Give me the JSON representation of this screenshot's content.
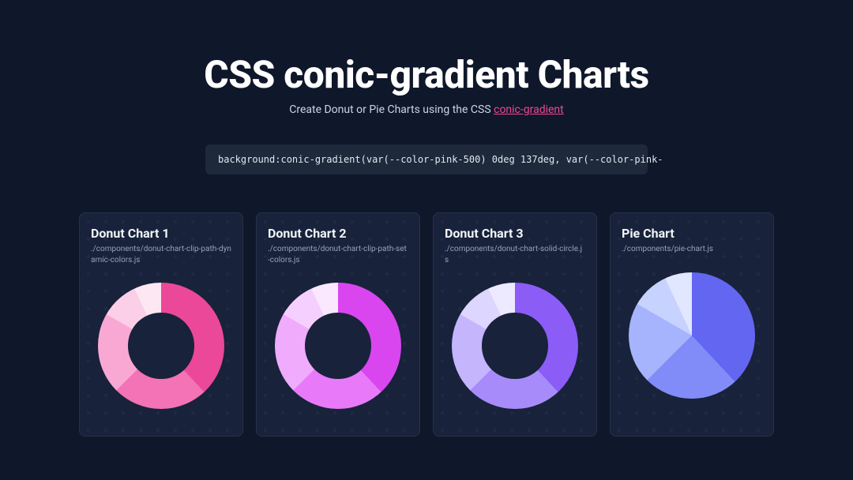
{
  "page": {
    "title": "CSS conic-gradient Charts",
    "subtitle_prefix": "Create Donut or Pie Charts using the CSS ",
    "subtitle_link": "conic-gradient",
    "code_snippet": "background:conic-gradient(var(--color-pink-500) 0deg 137deg, var(--color-pink-",
    "background_color": "#0f172a",
    "card_background": "#18223a",
    "code_background": "#1e293b",
    "title_color": "#ffffff",
    "subtitle_color": "#cbd5e1",
    "link_color": "#ec4899",
    "path_color": "#94a3b8",
    "title_fontsize": 48,
    "subtitle_fontsize": 14,
    "card_title_fontsize": 16,
    "card_path_fontsize": 10,
    "code_fontsize": 12,
    "chart_diameter": 160,
    "donut_hole_ratio": 0.52
  },
  "charts": [
    {
      "title": "Donut Chart 1",
      "path": "./components/donut-chart-clip-path-dynamic-colors.js",
      "type": "donut",
      "slices": [
        {
          "color": "#ec4899",
          "start_deg": 0,
          "end_deg": 137
        },
        {
          "color": "#f472b6",
          "start_deg": 137,
          "end_deg": 225
        },
        {
          "color": "#f9a8d4",
          "start_deg": 225,
          "end_deg": 300
        },
        {
          "color": "#fbcfe8",
          "start_deg": 300,
          "end_deg": 335
        },
        {
          "color": "#fce7f3",
          "start_deg": 335,
          "end_deg": 360
        }
      ]
    },
    {
      "title": "Donut Chart 2",
      "path": "./components/donut-chart-clip-path-set-colors.js",
      "type": "donut",
      "slices": [
        {
          "color": "#d946ef",
          "start_deg": 0,
          "end_deg": 137
        },
        {
          "color": "#e879f9",
          "start_deg": 137,
          "end_deg": 225
        },
        {
          "color": "#f0abfc",
          "start_deg": 225,
          "end_deg": 300
        },
        {
          "color": "#f5d0fe",
          "start_deg": 300,
          "end_deg": 335
        },
        {
          "color": "#fae8ff",
          "start_deg": 335,
          "end_deg": 360
        }
      ]
    },
    {
      "title": "Donut Chart 3",
      "path": "./components/donut-chart-solid-circle.js",
      "type": "donut",
      "slices": [
        {
          "color": "#8b5cf6",
          "start_deg": 0,
          "end_deg": 137
        },
        {
          "color": "#a78bfa",
          "start_deg": 137,
          "end_deg": 225
        },
        {
          "color": "#c4b5fd",
          "start_deg": 225,
          "end_deg": 300
        },
        {
          "color": "#ddd6fe",
          "start_deg": 300,
          "end_deg": 335
        },
        {
          "color": "#ede9fe",
          "start_deg": 335,
          "end_deg": 360
        }
      ]
    },
    {
      "title": "Pie Chart",
      "path": "./components/pie-chart.js",
      "type": "pie",
      "slices": [
        {
          "color": "#6366f1",
          "start_deg": 0,
          "end_deg": 137
        },
        {
          "color": "#818cf8",
          "start_deg": 137,
          "end_deg": 225
        },
        {
          "color": "#a5b4fc",
          "start_deg": 225,
          "end_deg": 300
        },
        {
          "color": "#c7d2fe",
          "start_deg": 300,
          "end_deg": 335
        },
        {
          "color": "#e0e7ff",
          "start_deg": 335,
          "end_deg": 360
        }
      ]
    }
  ]
}
